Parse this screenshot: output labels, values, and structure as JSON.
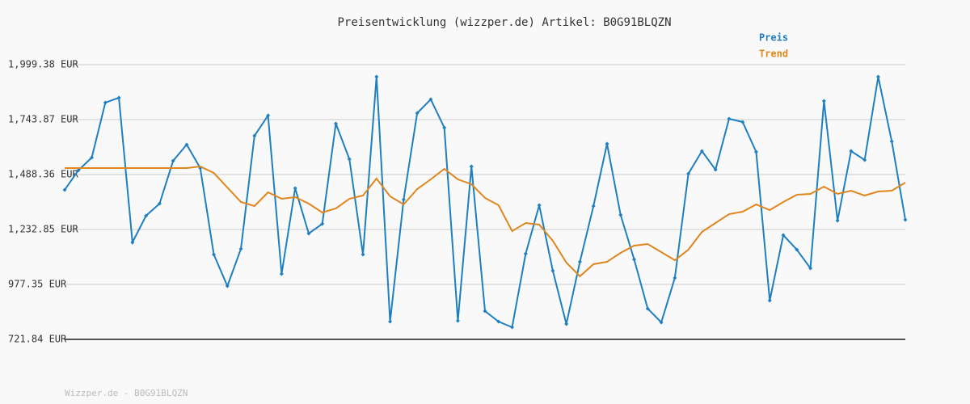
{
  "chart_data": {
    "type": "line",
    "title": "Preisentwicklung (wizzper.de) Artikel: B0G91BLQZN",
    "footer": "Wizzper.de - B0G91BLQZN",
    "ylim": [
      721.84,
      1999.38
    ],
    "yticks": [
      {
        "value": 721.84,
        "label": "721.84 EUR"
      },
      {
        "value": 977.35,
        "label": "977.35 EUR"
      },
      {
        "value": 1232.85,
        "label": "1,232.85 EUR"
      },
      {
        "value": 1488.36,
        "label": "1,488.36 EUR"
      },
      {
        "value": 1743.87,
        "label": "1,743.87 EUR"
      },
      {
        "value": 1999.38,
        "label": "1,999.38 EUR"
      }
    ],
    "grid": true,
    "legend_position": "top-right",
    "series": [
      {
        "name": "Preis",
        "color": "#1f7fbf",
        "markers": true,
        "values": [
          1416.9,
          1507.2,
          1567.3,
          1822.8,
          1845.3,
          1172.7,
          1296.7,
          1353.1,
          1552.2,
          1627.4,
          1518.4,
          1116.4,
          969.8,
          1142.7,
          1668.7,
          1762.7,
          1026.2,
          1424.5,
          1214.1,
          1259.1,
          1725.1,
          1559.7,
          1116.4,
          1943.0,
          804.5,
          1371.9,
          1773.9,
          1837.8,
          1706.3,
          808.3,
          1525.9,
          853.4,
          804.5,
          778.2,
          1120.1,
          1345.6,
          1041.2,
          793.2,
          1082.5,
          1341.8,
          1631.1,
          1300.5,
          1093.8,
          864.6,
          800.7,
          1007.4,
          1492.1,
          1597.3,
          1510.9,
          1747.6,
          1732.6,
          1593.6,
          902.2,
          1206.5,
          1138.9,
          1052.5,
          1830.3,
          1274.2,
          1597.3,
          1556.0,
          1943.0,
          1642.4,
          1277.9
        ]
      },
      {
        "name": "Trend",
        "color": "#e0861e",
        "markers": false,
        "values": [
          1518.4,
          1518.4,
          1518.4,
          1518.4,
          1518.4,
          1518.4,
          1518.4,
          1518.4,
          1518.4,
          1518.4,
          1525.9,
          1495.8,
          1428.2,
          1360.6,
          1341.8,
          1405.7,
          1375.6,
          1383.1,
          1353.1,
          1311.8,
          1330.6,
          1375.6,
          1390.6,
          1469.6,
          1386.9,
          1349.3,
          1420.7,
          1465.8,
          1514.7,
          1465.8,
          1443.3,
          1379.4,
          1345.6,
          1225.3,
          1262.9,
          1255.4,
          1180.3,
          1078.8,
          1014.9,
          1071.3,
          1082.5,
          1123.9,
          1157.7,
          1165.2,
          1127.7,
          1090.1,
          1138.9,
          1221.6,
          1262.9,
          1304.2,
          1315.5,
          1349.3,
          1323.0,
          1360.6,
          1394.4,
          1398.2,
          1432.0,
          1398.2,
          1413.2,
          1390.6,
          1409.4,
          1413.2,
          1450.8
        ]
      }
    ]
  }
}
